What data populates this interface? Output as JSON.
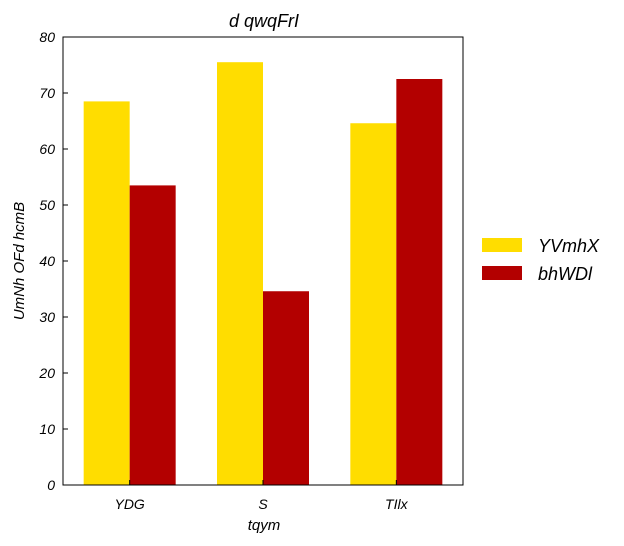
{
  "chart_data": {
    "type": "bar",
    "title": "d qwqFrI",
    "xlabel": "tqym",
    "ylabel": "UmNh  OFd hcmB",
    "categories": [
      "YDG",
      "S",
      "TIlx"
    ],
    "series": [
      {
        "name": "YVmhX",
        "values": [
          68.5,
          75.5,
          64.6
        ],
        "color": "#ffdd00"
      },
      {
        "name": "bhWDl",
        "values": [
          53.5,
          34.6,
          72.5
        ],
        "color": "#b30000"
      }
    ],
    "ylim": [
      0,
      80
    ],
    "yticks": [
      0,
      10,
      20,
      30,
      40,
      50,
      60,
      70,
      80
    ],
    "grid": false,
    "legend_position": "right"
  }
}
